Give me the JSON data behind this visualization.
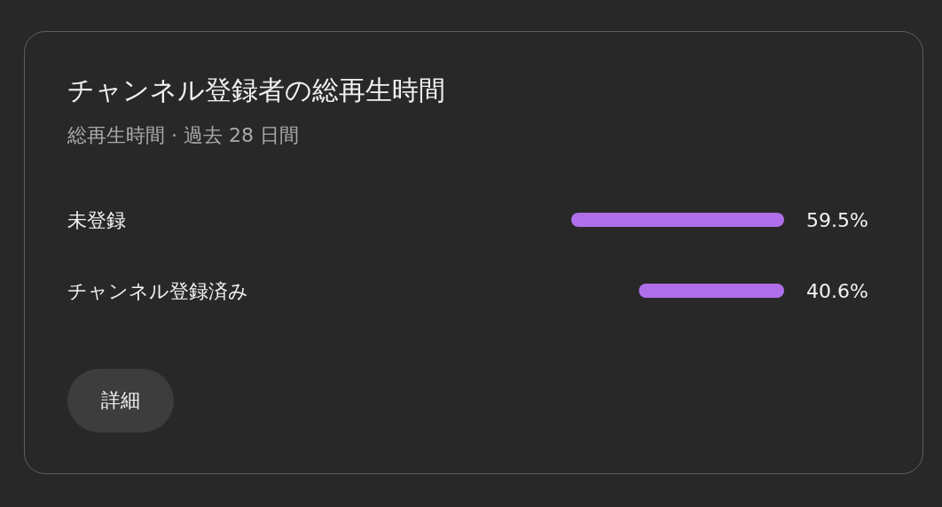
{
  "chart_data": {
    "type": "bar",
    "orientation": "horizontal",
    "title": "チャンネル登録者の総再生時間",
    "subtitle": "総再生時間 · 過去 28 日間",
    "categories": [
      "未登録",
      "チャンネル登録済み"
    ],
    "values": [
      59.5,
      40.6
    ],
    "color": "#b06fea",
    "value_labels": [
      "59.5%",
      "40.6%"
    ],
    "annotations": [
      "詳細"
    ]
  }
}
